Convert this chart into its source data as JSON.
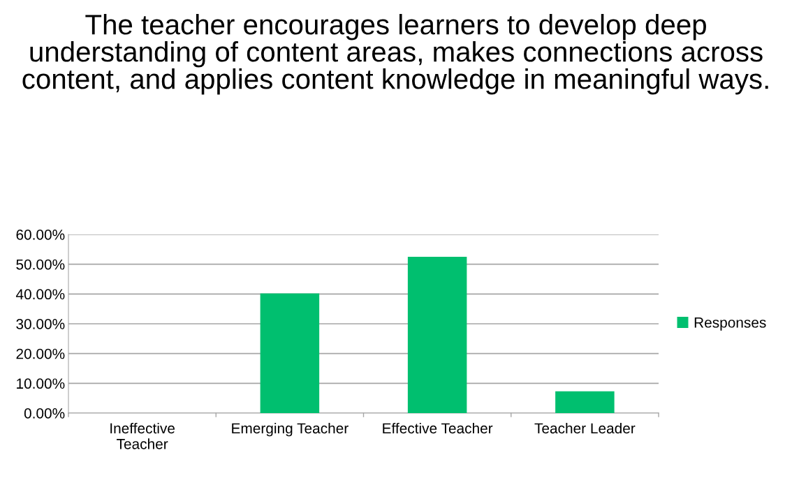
{
  "chart_data": {
    "type": "bar",
    "title": "The teacher encourages learners to develop deep understanding of content areas, makes connections across content, and applies content knowledge in meaningful ways.",
    "categories": [
      "Ineffective\nTeacher",
      "Emerging Teacher",
      "Effective Teacher",
      "Teacher Leader"
    ],
    "series": [
      {
        "name": "Responses",
        "color": "#00bf6f",
        "values": [
          0,
          40.2,
          52.5,
          7.3
        ]
      }
    ],
    "ylim": [
      0,
      60
    ],
    "yticks": [
      {
        "value": 0,
        "label": "0.00%"
      },
      {
        "value": 10,
        "label": "10.00%"
      },
      {
        "value": 20,
        "label": "20.00%"
      },
      {
        "value": 30,
        "label": "30.00%"
      },
      {
        "value": 40,
        "label": "40.00%"
      },
      {
        "value": 50,
        "label": "50.00%"
      },
      {
        "value": 60,
        "label": "60.00%"
      }
    ],
    "grid": "y",
    "legend": "right"
  }
}
